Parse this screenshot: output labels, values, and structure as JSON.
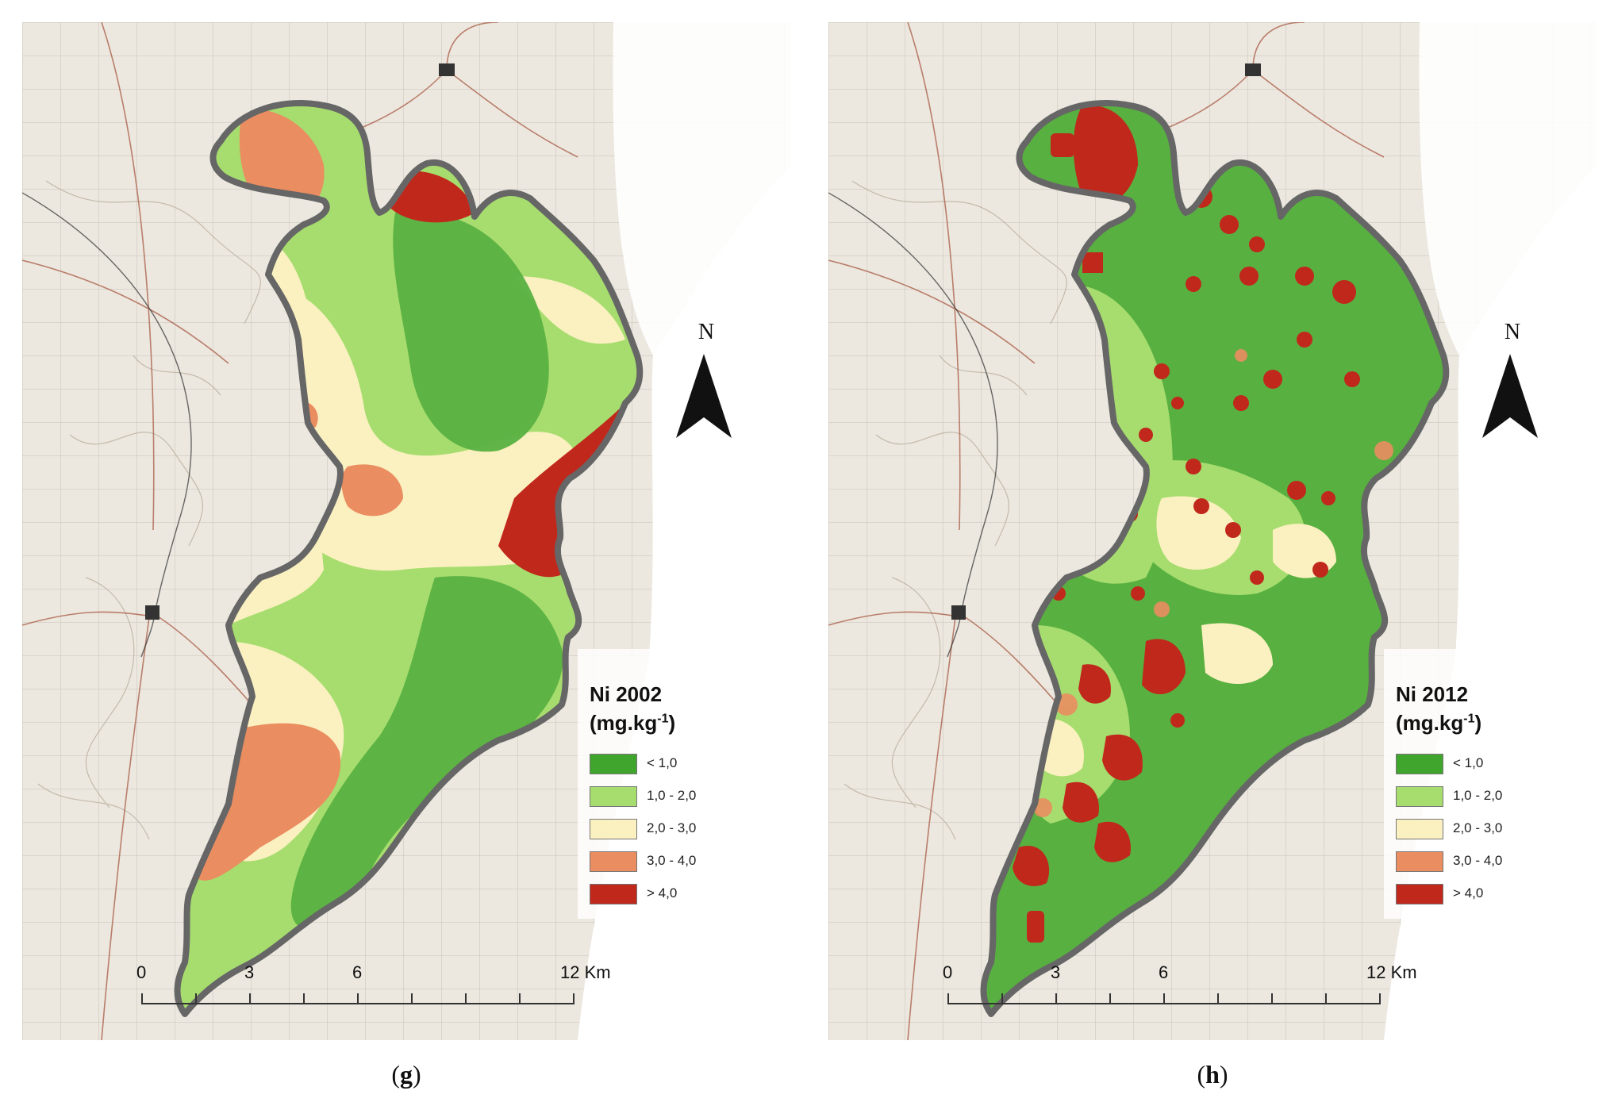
{
  "panels": [
    {
      "id": "g",
      "caption_letter": "g",
      "legend": {
        "title": "Ni 2002",
        "unit_base": "(mg.kg",
        "unit_exp": "-1",
        "unit_close": ")"
      }
    },
    {
      "id": "h",
      "caption_letter": "h",
      "legend": {
        "title": "Ni 2012",
        "unit_base": "(mg.kg",
        "unit_exp": "-1",
        "unit_close": ")"
      }
    }
  ],
  "legend_classes": [
    {
      "label": "< 1,0",
      "color": "#3fa52c"
    },
    {
      "label": "1,0 - 2,0",
      "color": "#a6dd6e"
    },
    {
      "label": "2,0 - 3,0",
      "color": "#fbf0c0"
    },
    {
      "label": "3,0 - 4,0",
      "color": "#ea8d60"
    },
    {
      "label": "> 4,0",
      "color": "#c0281c"
    }
  ],
  "north_label": "N",
  "scale_bar": {
    "labels": [
      "0",
      "3",
      "6",
      "12 Km"
    ],
    "unit": "Km"
  },
  "colors": {
    "boundary": "#666666",
    "basemap": "#ece8df",
    "road": "#b06048",
    "contour": "#b8a898"
  }
}
